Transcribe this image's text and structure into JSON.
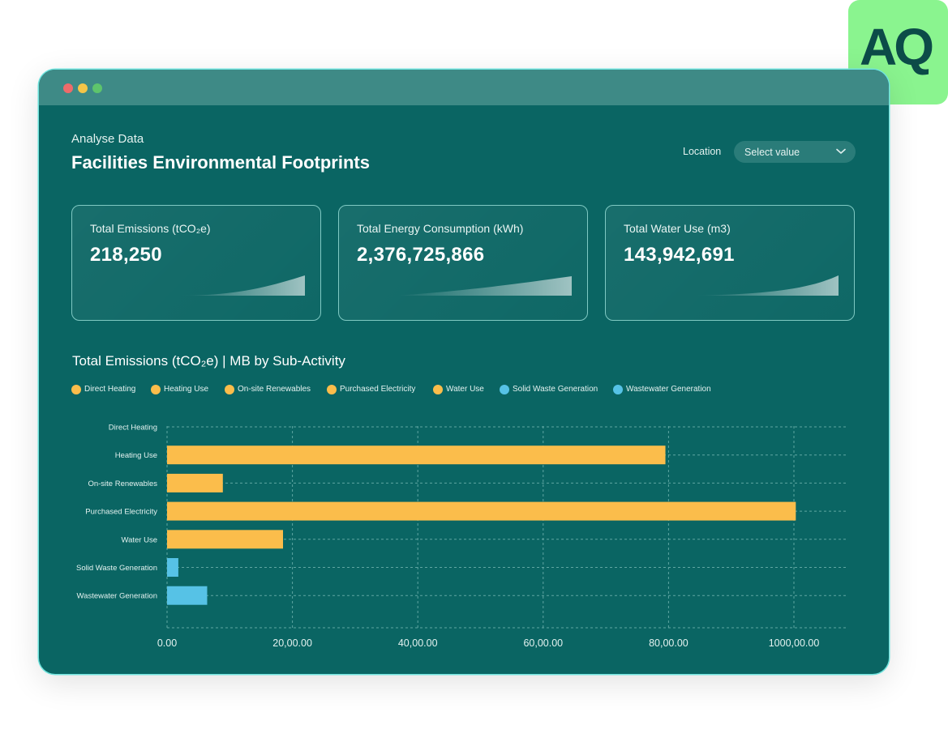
{
  "brand": {
    "logo_text": "AQ"
  },
  "header": {
    "eyebrow": "Analyse Data",
    "title": "Facilities Environmental Footprints",
    "location_label": "Location",
    "location_select": "Select value"
  },
  "kpis": [
    {
      "label": "Total Emissions (tCO₂e)",
      "value": "218,250"
    },
    {
      "label": "Total Energy Consumption (kWh)",
      "value": "2,376,725,866"
    },
    {
      "label": "Total Water Use (m3)",
      "value": "143,942,691"
    }
  ],
  "chart_title": "Total Emissions (tCO₂e) | MB by Sub-Activity",
  "colors": {
    "yellow": "#fbbd4b",
    "blue": "#56c2e6",
    "panel": "#0a6563",
    "accent": "#8af48f"
  },
  "chart_data": {
    "type": "bar",
    "orientation": "horizontal",
    "title": "Total Emissions (tCO₂e) | MB by Sub-Activity",
    "categories": [
      "Direct Heating",
      "Heating Use",
      "On-site Renewables",
      "Purchased Electricity",
      "Water Use",
      "Solid Waste Generation",
      "Wastewater Generation"
    ],
    "values": [
      0,
      79.5,
      8.9,
      100.3,
      18.5,
      1.8,
      6.4
    ],
    "series_colors": [
      "yellow",
      "yellow",
      "yellow",
      "yellow",
      "yellow",
      "blue",
      "blue"
    ],
    "x_ticks": [
      "0.00",
      "20,00.00",
      "40,00.00",
      "60,00.00",
      "80,00.00",
      "1000,00.00"
    ],
    "x_tick_values": [
      0,
      20,
      40,
      60,
      80,
      100
    ],
    "xlim": [
      0,
      109
    ],
    "grid": true,
    "legend": [
      {
        "label": "Direct Heating",
        "color": "yellow"
      },
      {
        "label": "Heating Use",
        "color": "yellow"
      },
      {
        "label": "On-site Renewables",
        "color": "yellow"
      },
      {
        "label": "Purchased Electricity",
        "color": "yellow"
      },
      {
        "label": "Water Use",
        "color": "yellow"
      },
      {
        "label": "Solid Waste Generation",
        "color": "blue"
      },
      {
        "label": "Wastewater Generation",
        "color": "blue"
      }
    ],
    "legend_placement": "top-left"
  }
}
